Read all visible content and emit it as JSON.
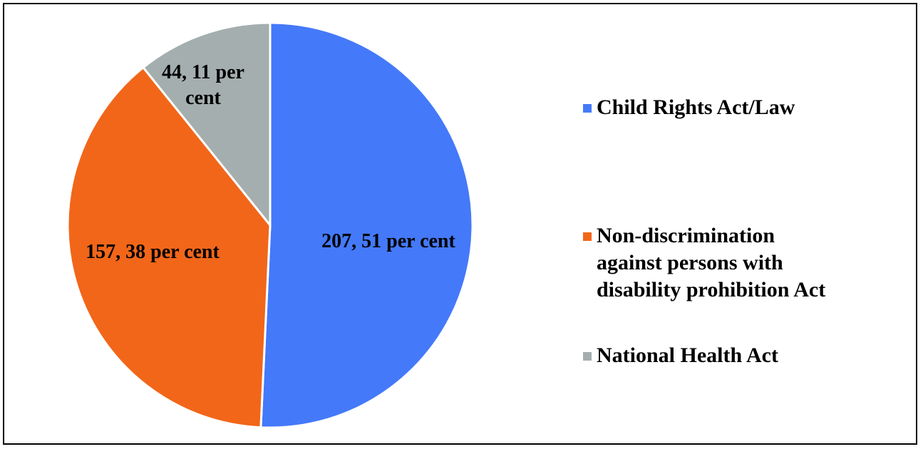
{
  "chart_data": {
    "type": "pie",
    "title": "",
    "categories": [
      "Child Rights Act/Law",
      "Non-discrimination against persons with disability prohibition Act",
      "National Health Act"
    ],
    "values": [
      207,
      157,
      44
    ],
    "percentages": [
      51,
      38,
      11
    ],
    "data_labels": [
      "207, 51 per cent",
      "157, 38 per cent",
      "44, 11 per cent"
    ],
    "colors": [
      "#4479F9",
      "#F26619",
      "#A4AEAE"
    ],
    "legend_position": "right",
    "legend": [
      {
        "label": "Child Rights Act/Law",
        "color": "#4479F9"
      },
      {
        "label": "Non-discrimination\nagainst persons with\ndisability prohibition Act",
        "color": "#F26619"
      },
      {
        "label": "National Health Act",
        "color": "#A4AEAE"
      }
    ]
  }
}
